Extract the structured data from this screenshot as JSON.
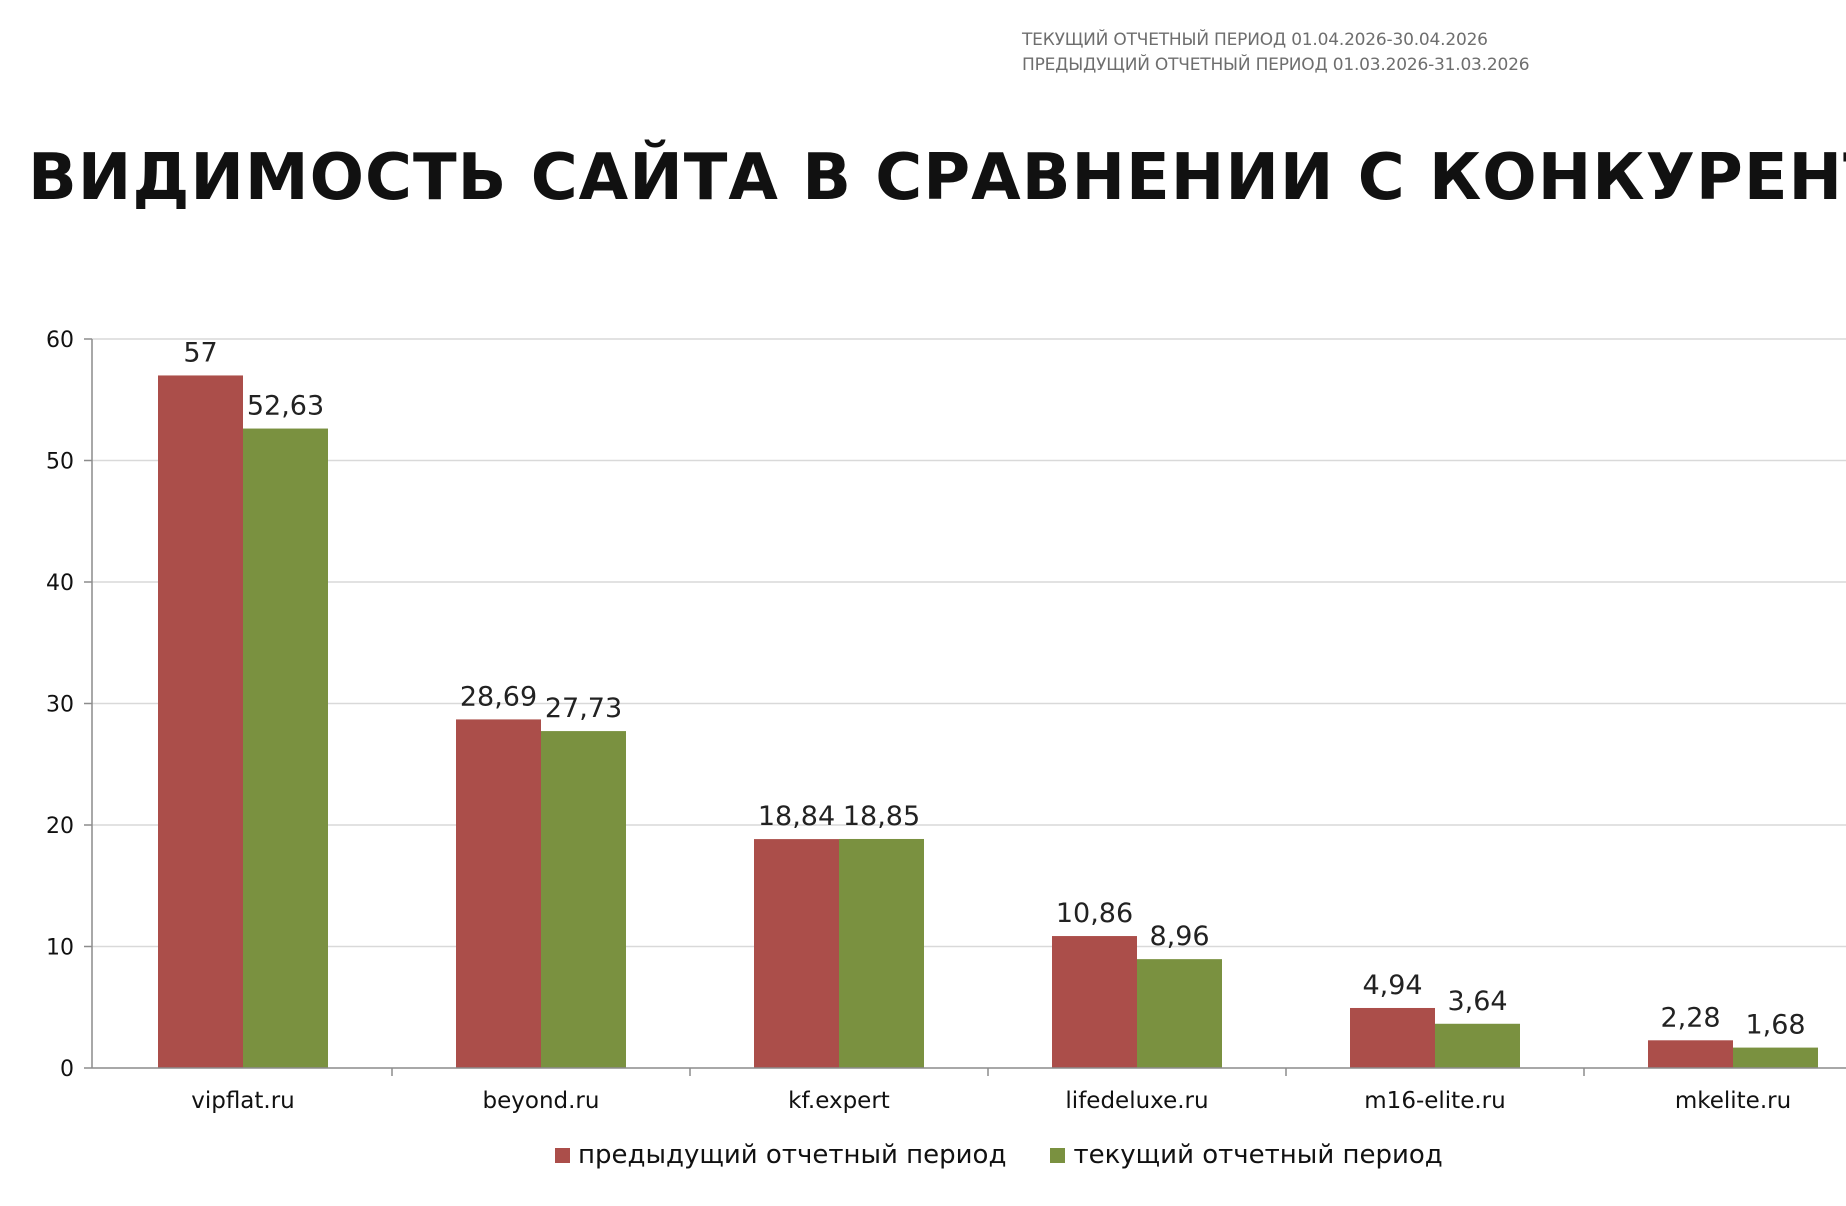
{
  "header": {
    "current_period": "ТЕКУЩИЙ ОТЧЕТНЫЙ ПЕРИОД 01.04.2026-30.04.2026",
    "previous_period": "ПРЕДЫДУЩИЙ ОТЧЕТНЫЙ ПЕРИОД 01.03.2026-31.03.2026"
  },
  "colors": {
    "previous": "#ab4e4a",
    "current": "#7a9140",
    "grid": "#d9d9d9",
    "axis": "#8c8c8c"
  },
  "chart_data": {
    "type": "bar",
    "title": "ВИДИМОСТЬ САЙТА В СРАВНЕНИИ С КОНКУРЕНТАМИ",
    "categories": [
      "vipflat.ru",
      "beyond.ru",
      "kf.expert",
      "lifedeluxe.ru",
      "m16-elite.ru",
      "mkelite.ru"
    ],
    "series": [
      {
        "name": "предыдущий отчетный период",
        "values": [
          57,
          28.69,
          18.84,
          10.86,
          4.94,
          2.28
        ],
        "labels": [
          "57",
          "28,69",
          "18,84",
          "10,86",
          "4,94",
          "2,28"
        ]
      },
      {
        "name": "текущий отчетный период",
        "values": [
          52.63,
          27.73,
          18.85,
          8.96,
          3.64,
          1.68
        ],
        "labels": [
          "52,63",
          "27,73",
          "18,85",
          "8,96",
          "3,64",
          "1,68"
        ]
      }
    ],
    "yticks": [
      "0",
      "10",
      "20",
      "30",
      "40",
      "50",
      "60"
    ],
    "ylim": [
      0,
      60
    ],
    "grid": true,
    "legend": "bottom-center",
    "xlabel": "",
    "ylabel": ""
  }
}
